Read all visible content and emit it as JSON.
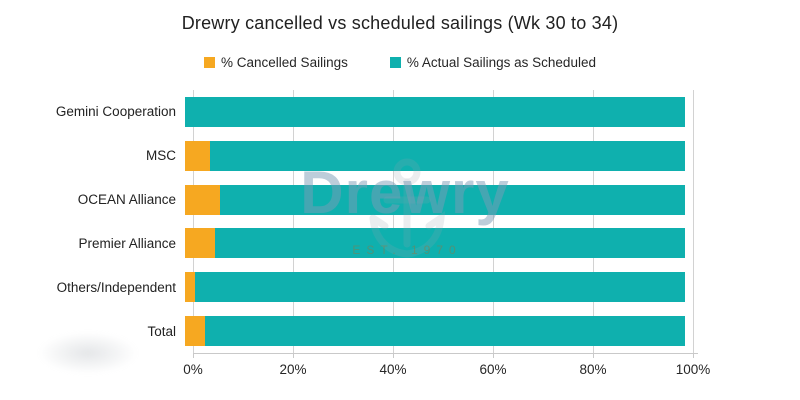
{
  "title": "Drewry cancelled vs scheduled sailings (Wk 30 to 34)",
  "legend": [
    {
      "label": "% Cancelled Sailings",
      "color": "#f6a821"
    },
    {
      "label": "% Actual Sailings as Scheduled",
      "color": "#0fb0ae"
    }
  ],
  "watermark": {
    "text": "Drewry",
    "subtext": "EST. 1970"
  },
  "chart_data": {
    "type": "bar",
    "orientation": "horizontal",
    "stacked": true,
    "title": "Drewry cancelled vs scheduled sailings (Wk 30 to 34)",
    "categories": [
      "Gemini Cooperation",
      "MSC",
      "OCEAN Alliance",
      "Premier Alliance",
      "Others/Independent",
      "Total"
    ],
    "series": [
      {
        "name": "% Cancelled Sailings",
        "color": "#f6a821",
        "values": [
          0,
          5,
          7,
          6,
          2,
          4
        ]
      },
      {
        "name": "% Actual Sailings as Scheduled",
        "color": "#0fb0ae",
        "values": [
          100,
          95,
          93,
          94,
          98,
          96
        ]
      }
    ],
    "xlabel": "",
    "ylabel": "",
    "xlim": [
      0,
      100
    ],
    "x_ticks": [
      "0%",
      "20%",
      "40%",
      "60%",
      "80%",
      "100%"
    ],
    "x_tick_values": [
      0,
      20,
      40,
      60,
      80,
      100
    ],
    "grid": "vertical",
    "legend_position": "top"
  }
}
